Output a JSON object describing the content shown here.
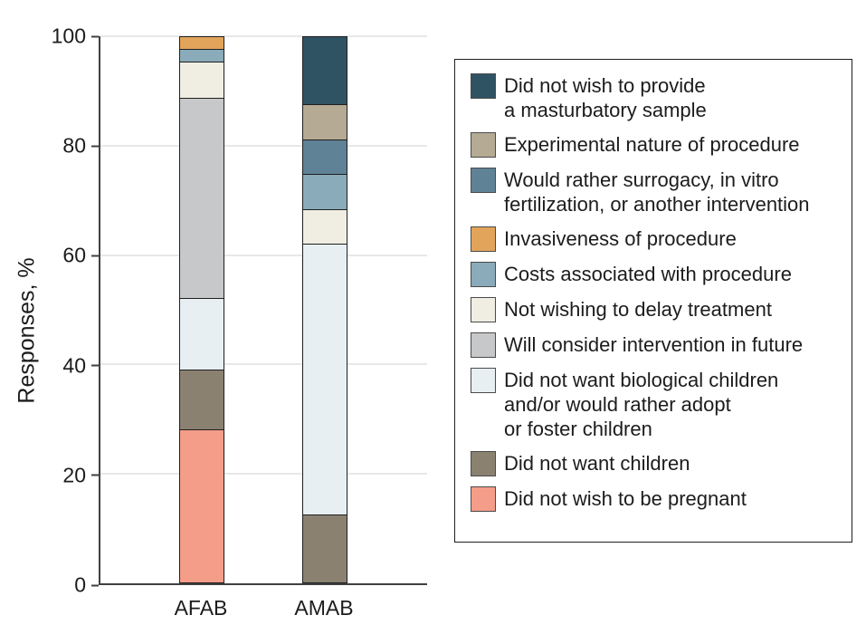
{
  "chart_data": {
    "type": "stacked-bar",
    "title": "",
    "ylabel": "Responses, %",
    "xlabel": "",
    "ylim": [
      0,
      100
    ],
    "yticks": [
      0,
      20,
      40,
      60,
      80,
      100
    ],
    "grid": "horizontal",
    "legend_position": "right",
    "categories": [
      "AFAB",
      "AMAB"
    ],
    "series": [
      {
        "name": "Did not wish to provide a masturbatory sample",
        "legend_lines": [
          "Did not wish to provide",
          "a masturbatory sample"
        ],
        "color": "#2f5363",
        "values": [
          0,
          12.5
        ]
      },
      {
        "name": "Experimental nature of procedure",
        "legend_lines": [
          "Experimental nature of procedure"
        ],
        "color": "#b5aa93",
        "values": [
          0,
          6.3
        ]
      },
      {
        "name": "Would rather surrogacy, in vitro fertilization, or another intervention",
        "legend_lines": [
          "Would rather surrogacy, in vitro",
          "fertilization, or another intervention"
        ],
        "color": "#5f8296",
        "values": [
          0,
          6.3
        ]
      },
      {
        "name": "Invasiveness of procedure",
        "legend_lines": [
          "Invasiveness of procedure"
        ],
        "color": "#e2a45b",
        "values": [
          2.2,
          0
        ]
      },
      {
        "name": "Costs associated with procedure",
        "legend_lines": [
          "Costs associated with procedure"
        ],
        "color": "#8aabba",
        "values": [
          2.2,
          6.3
        ]
      },
      {
        "name": "Not wishing to delay treatment",
        "legend_lines": [
          "Not wishing to delay treatment"
        ],
        "color": "#f0eee3",
        "values": [
          6.5,
          6.3
        ]
      },
      {
        "name": "Will consider intervention in future",
        "legend_lines": [
          "Will consider intervention in future"
        ],
        "color": "#c7c8ca",
        "values": [
          37.0,
          0
        ]
      },
      {
        "name": "Did not want biological children and/or would rather adopt or foster children",
        "legend_lines": [
          "Did not want biological children",
          "and/or would rather adopt",
          "or foster children"
        ],
        "color": "#e7eff3",
        "values": [
          13.0,
          50.0
        ]
      },
      {
        "name": "Did not want children",
        "legend_lines": [
          "Did not want children"
        ],
        "color": "#8a8171",
        "values": [
          10.9,
          12.5
        ]
      },
      {
        "name": "Did not wish to be pregnant",
        "legend_lines": [
          "Did not wish to be pregnant"
        ],
        "color": "#f49d88",
        "values": [
          28.3,
          0
        ]
      }
    ]
  }
}
